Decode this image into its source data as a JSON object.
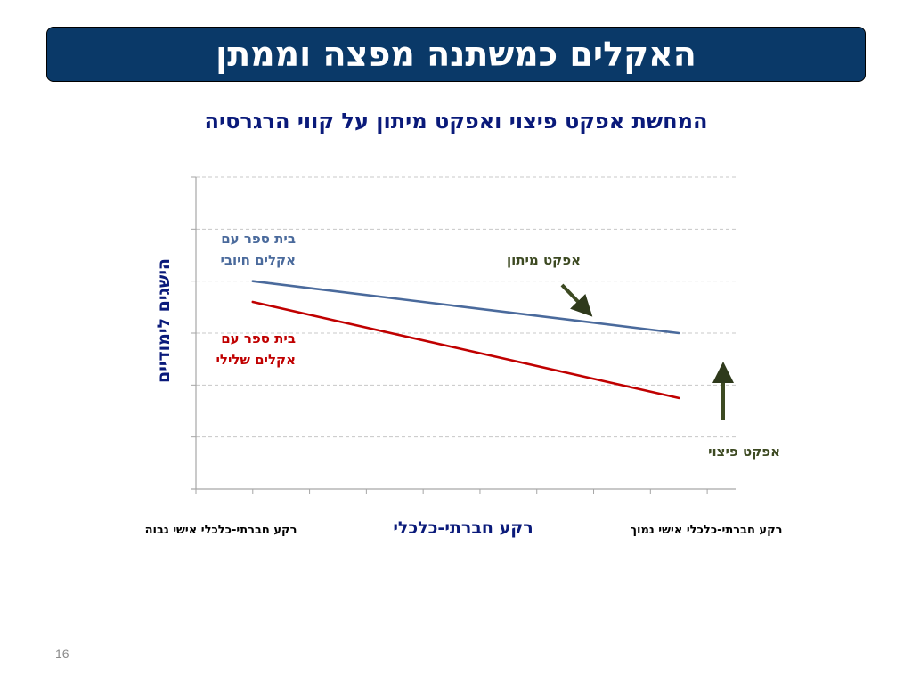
{
  "slide": {
    "title": "האקלים כמשתנה מפצה וממתן",
    "subtitle": "המחשת אפקט פיצוי ואפקט מיתון על קווי הרגרסיה",
    "page_number": "16"
  },
  "chart_data": {
    "type": "line",
    "xlabel": "רקע חברתי-כלכלי",
    "ylabel": "הישגים לימודיים",
    "x_end_labels": {
      "left": "רקע חברתי-כלכלי אישי גבוה",
      "right": "רקע חברתי-כלכלי אישי נמוך"
    },
    "grid": true,
    "series": [
      {
        "name": "בית ספר עם אקלים חיובי",
        "color": "#4a6a9c",
        "x": [
          1,
          8.5
        ],
        "y": [
          4.0,
          3.0
        ]
      },
      {
        "name": "בית ספר עם אקלים שלילי",
        "color": "#c00000",
        "x": [
          1,
          8.5
        ],
        "y": [
          3.6,
          1.75
        ]
      }
    ],
    "annotations": [
      {
        "text": "אפקט מיתון",
        "color": "#3d4a22"
      },
      {
        "text": "אפקט פיצוי",
        "color": "#3d4a22"
      }
    ]
  }
}
